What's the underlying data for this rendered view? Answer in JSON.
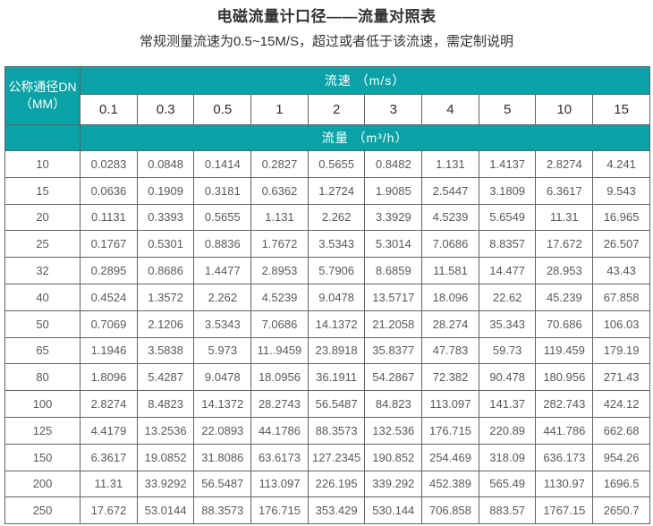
{
  "page": {
    "title": "电磁流量计口径——流量对照表",
    "subtitle": "常规测量流速为0.5~15M/S，超过或者低于该流速，需定制说明"
  },
  "colors": {
    "teal_header": "#0AA2A6",
    "header_text": "#FFFFFF",
    "data_text": "#58595B",
    "border_dark": "#383838",
    "border_inner": "#626262"
  },
  "table": {
    "corner_header": {
      "line1": "公称通径DN",
      "line2": "（MM）"
    },
    "velocity_header": "流速 （m/s）",
    "flow_header": "流量 （m³/h）",
    "velocities": [
      "0.1",
      "0.3",
      "0.5",
      "1",
      "2",
      "3",
      "4",
      "5",
      "10",
      "15"
    ],
    "rows": [
      {
        "dn": "10",
        "values": [
          "0.0283",
          "0.0848",
          "0.1414",
          "0.2827",
          "0.5655",
          "0.8482",
          "1.131",
          "1.4137",
          "2.8274",
          "4.241"
        ]
      },
      {
        "dn": "15",
        "values": [
          "0.0636",
          "0.1909",
          "0.3181",
          "0.6362",
          "1.2724",
          "1.9085",
          "2.5447",
          "3.1809",
          "6.3617",
          "9.543"
        ]
      },
      {
        "dn": "20",
        "values": [
          "0.1131",
          "0.3393",
          "0.5655",
          "1.131",
          "2.262",
          "3.3929",
          "4.5239",
          "5.6549",
          "11.31",
          "16.965"
        ]
      },
      {
        "dn": "25",
        "values": [
          "0.1767",
          "0.5301",
          "0.8836",
          "1.7672",
          "3.5343",
          "5.3014",
          "7.0686",
          "8.8357",
          "17.672",
          "26.507"
        ]
      },
      {
        "dn": "32",
        "values": [
          "0.2895",
          "0.8686",
          "1.4477",
          "2.8953",
          "5.7906",
          "8.6859",
          "11.581",
          "14.477",
          "28.953",
          "43.43"
        ]
      },
      {
        "dn": "40",
        "values": [
          "0.4524",
          "1.3572",
          "2.262",
          "4.5239",
          "9.0478",
          "13.5717",
          "18.096",
          "22.62",
          "45.239",
          "67.858"
        ]
      },
      {
        "dn": "50",
        "values": [
          "0.7069",
          "2.1206",
          "3.5343",
          "7.0686",
          "14.1372",
          "21.2058",
          "28.274",
          "35.343",
          "70.686",
          "106.03"
        ]
      },
      {
        "dn": "65",
        "values": [
          "1.1946",
          "3.5838",
          "5.973",
          "11..9459",
          "23.8918",
          "35.8377",
          "47.783",
          "59.73",
          "119.459",
          "179.19"
        ]
      },
      {
        "dn": "80",
        "values": [
          "1.8096",
          "5.4287",
          "9.0478",
          "18.0956",
          "36.1911",
          "54.2867",
          "72.382",
          "90.478",
          "180.956",
          "271.43"
        ]
      },
      {
        "dn": "100",
        "values": [
          "2.8274",
          "8.4823",
          "14.1372",
          "28.2743",
          "56.5487",
          "84.823",
          "113.097",
          "141.37",
          "282.743",
          "424.12"
        ]
      },
      {
        "dn": "125",
        "values": [
          "4.4179",
          "13.2536",
          "22.0893",
          "44.1786",
          "88.3573",
          "132.536",
          "176.715",
          "220.89",
          "441.786",
          "662.68"
        ]
      },
      {
        "dn": "150",
        "values": [
          "6.3617",
          "19.0852",
          "31.8086",
          "63.6173",
          "127.2345",
          "190.852",
          "254.469",
          "318.09",
          "636.173",
          "954.26"
        ]
      },
      {
        "dn": "200",
        "values": [
          "11.31",
          "33.9292",
          "56.5487",
          "113.097",
          "226.195",
          "339.292",
          "452.389",
          "565.49",
          "1130.97",
          "1696.5"
        ]
      },
      {
        "dn": "250",
        "values": [
          "17.672",
          "53.0144",
          "88.3573",
          "176.715",
          "353.429",
          "530.144",
          "706.858",
          "883.57",
          "1767.15",
          "2650.7"
        ]
      }
    ]
  }
}
